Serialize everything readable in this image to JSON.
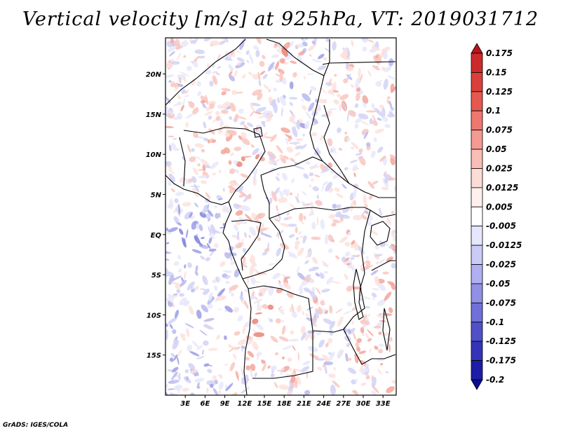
{
  "title": "Vertical velocity [m/s] at 925hPa, VT: 2019031712",
  "credit": "GrADS: IGES/COLA",
  "map": {
    "lat_labels": [
      "20N",
      "15N",
      "10N",
      "5N",
      "EQ",
      "5S",
      "10S",
      "15S"
    ],
    "lat_values": [
      20,
      15,
      10,
      5,
      0,
      -5,
      -10,
      -15
    ],
    "lon_labels": [
      "3E",
      "6E",
      "9E",
      "12E",
      "15E",
      "18E",
      "21E",
      "24E",
      "27E",
      "30E",
      "33E"
    ],
    "lon_values": [
      3,
      6,
      9,
      12,
      15,
      18,
      21,
      24,
      27,
      30,
      33
    ],
    "lon_range": [
      0,
      35
    ],
    "lat_range": [
      -20,
      24.5
    ]
  },
  "colorbar": {
    "levels": [
      "0.175",
      "0.15",
      "0.125",
      "0.1",
      "0.075",
      "0.05",
      "0.025",
      "0.0125",
      "0.005",
      "-0.005",
      "-0.0125",
      "-0.025",
      "-0.05",
      "-0.075",
      "-0.1",
      "-0.125",
      "-0.175",
      "-0.2"
    ],
    "colors": [
      "#b8141c",
      "#cc2a2a",
      "#db3f3c",
      "#e65750",
      "#ee7770",
      "#f49a92",
      "#f8bdb6",
      "#fcdcd6",
      "#fff0ee",
      "#ffffff",
      "#e6e6ff",
      "#cbcbf8",
      "#afaff1",
      "#9090e6",
      "#7070d8",
      "#5050c8",
      "#3434b8",
      "#1d1da8",
      "#0c0c96"
    ]
  }
}
